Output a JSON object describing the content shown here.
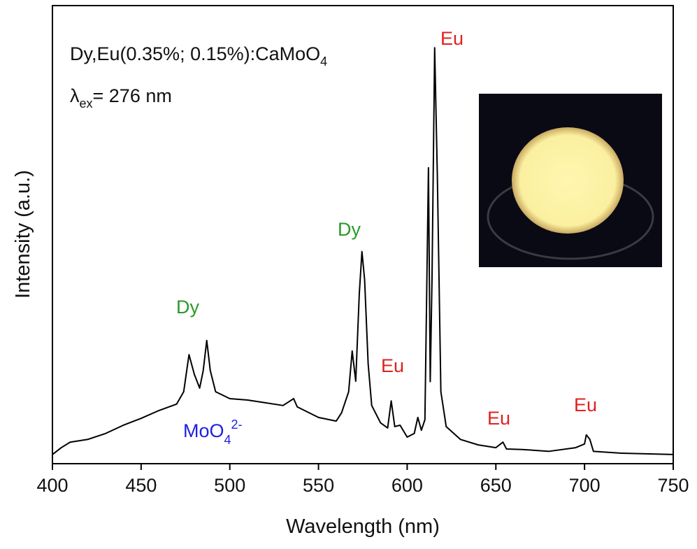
{
  "chart_data": {
    "type": "line",
    "x_label": "Wavelength (nm)",
    "y_label": "Intensity (a.u.)",
    "sample_label": {
      "text": "Dy,Eu(0.35%; 0.15%):CaMoO",
      "sub": "4"
    },
    "excitation_label": {
      "symbol": "λ",
      "sub": "ex",
      "text": "= 276 nm"
    },
    "color": "#000000",
    "x": [
      400,
      405,
      410,
      420,
      430,
      440,
      450,
      460,
      470,
      474,
      477,
      480,
      483,
      485,
      487,
      489,
      492,
      500,
      510,
      520,
      530,
      536,
      538,
      550,
      560,
      563,
      567,
      569,
      571,
      573,
      574.5,
      576,
      578,
      580,
      585,
      589,
      591,
      593,
      596,
      600,
      604,
      606,
      608,
      610,
      612,
      613,
      614,
      615.5,
      617,
      619,
      622,
      630,
      640,
      650,
      654,
      656,
      665,
      680,
      695,
      700,
      701,
      703,
      705,
      720,
      750
    ],
    "values": [
      2.0,
      3.5,
      4.7,
      5.3,
      6.6,
      8.4,
      9.9,
      11.6,
      13.0,
      15.7,
      23.8,
      19.5,
      16.5,
      20.3,
      26.9,
      20.3,
      15.7,
      14.2,
      13.9,
      13.3,
      12.7,
      14.2,
      12.4,
      10.1,
      9.3,
      11.1,
      15.7,
      24.6,
      18.0,
      37.1,
      46.3,
      40.2,
      21.8,
      12.7,
      8.9,
      7.8,
      13.7,
      8.1,
      8.4,
      5.8,
      6.6,
      10.1,
      7.3,
      9.6,
      64.6,
      17.9,
      40.2,
      90.8,
      63.1,
      15.7,
      8.1,
      5.3,
      4.1,
      3.5,
      4.7,
      3.2,
      3.1,
      2.7,
      3.5,
      4.3,
      6.3,
      5.3,
      2.7,
      2.3,
      2.0
    ],
    "xlim": [
      400,
      750
    ],
    "xticks": [
      400,
      450,
      500,
      550,
      600,
      650,
      700,
      750
    ],
    "ylim": [
      0,
      100
    ],
    "annotations": [
      {
        "text": "Dy",
        "color": "#2a9a2a"
      },
      {
        "text": "Dy",
        "color": "#2a9a2a"
      },
      {
        "text": "Eu",
        "color": "#e02020"
      },
      {
        "text": "Eu",
        "color": "#e02020"
      },
      {
        "text": "Eu",
        "color": "#e02020"
      },
      {
        "text": "Eu",
        "color": "#e02020"
      },
      {
        "text": "MoO",
        "sub": "4",
        "sup": "2-",
        "color": "#2020e0"
      }
    ]
  }
}
